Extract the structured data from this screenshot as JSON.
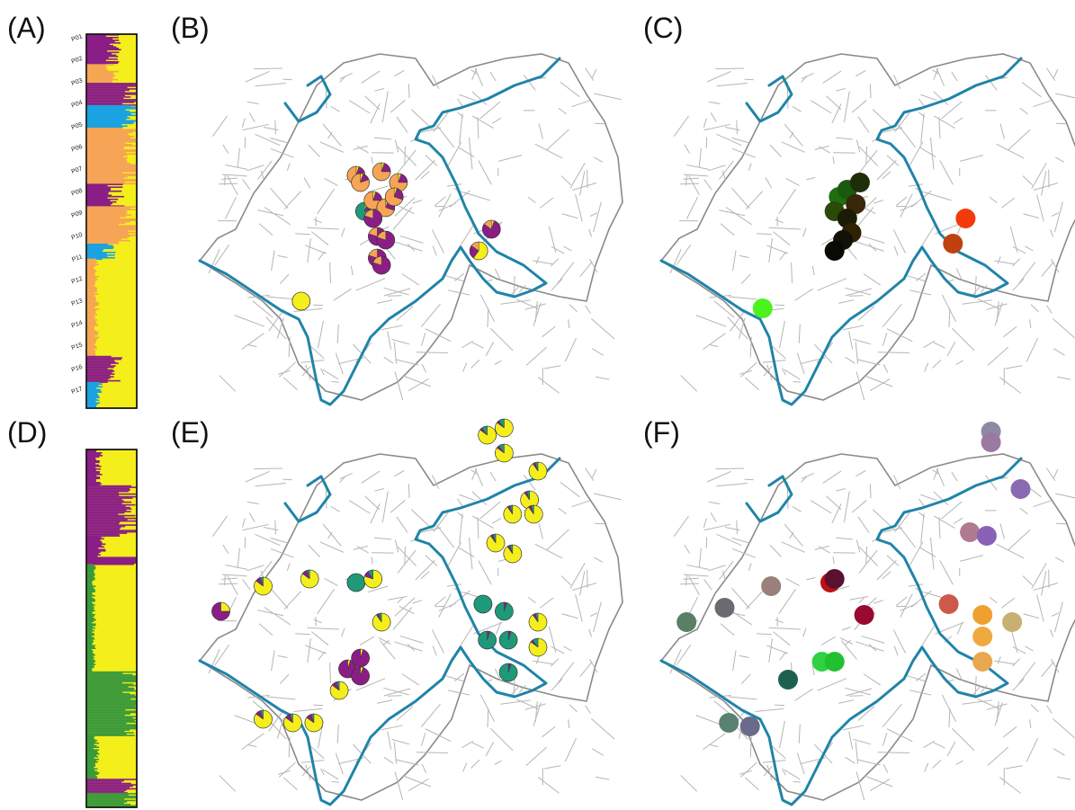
{
  "colors": {
    "river": "#1f84a8",
    "yellow": "#f4ef1a",
    "purple": "#8a1e86",
    "blue": "#1aa3e0",
    "orange": "#f6a455",
    "green": "#3a9a3a",
    "teal": "#1e9a7a"
  },
  "panels": {
    "A": {
      "label": "(A)",
      "kind": "structure-bar",
      "ticks": [
        "P01",
        "P02",
        "P03",
        "P04",
        "P05",
        "P06",
        "P07",
        "P08",
        "P09",
        "P10",
        "P11",
        "P12",
        "P13",
        "P14",
        "P15",
        "P16",
        "P17"
      ]
    },
    "B": {
      "label": "(B)",
      "kind": "pie-map"
    },
    "C": {
      "label": "(C)",
      "kind": "color-map"
    },
    "D": {
      "label": "(D)",
      "kind": "structure-bar"
    },
    "E": {
      "label": "(E)",
      "kind": "pie-map"
    },
    "F": {
      "label": "(F)",
      "kind": "color-map"
    }
  },
  "pies_B": [
    {
      "p": [
        0.24,
        0.8
      ],
      "f": [
        1,
        0,
        0,
        0,
        0
      ]
    },
    {
      "p": [
        0.37,
        0.45
      ],
      "f": [
        0.05,
        0.15,
        0,
        0,
        0.8
      ]
    },
    {
      "p": [
        0.38,
        0.47
      ],
      "f": [
        0.05,
        0.15,
        0,
        0,
        0.8
      ]
    },
    {
      "p": [
        0.39,
        0.55
      ],
      "f": [
        0.05,
        0.15,
        0,
        0.8,
        0
      ]
    },
    {
      "p": [
        0.43,
        0.44
      ],
      "f": [
        0.05,
        0.2,
        0,
        0,
        0.75
      ]
    },
    {
      "p": [
        0.41,
        0.52
      ],
      "f": [
        0.05,
        0.2,
        0,
        0,
        0.75
      ]
    },
    {
      "p": [
        0.47,
        0.47
      ],
      "f": [
        0.05,
        0.2,
        0,
        0,
        0.75
      ]
    },
    {
      "p": [
        0.44,
        0.54
      ],
      "f": [
        0.05,
        0.25,
        0,
        0,
        0.7
      ]
    },
    {
      "p": [
        0.46,
        0.51
      ],
      "f": [
        0.05,
        0.25,
        0,
        0,
        0.7
      ]
    },
    {
      "p": [
        0.41,
        0.57
      ],
      "f": [
        0,
        0.8,
        0,
        0,
        0.2
      ]
    },
    {
      "p": [
        0.42,
        0.62
      ],
      "f": [
        0,
        0.8,
        0,
        0,
        0.2
      ]
    },
    {
      "p": [
        0.44,
        0.63
      ],
      "f": [
        0,
        0.8,
        0,
        0,
        0.2
      ]
    },
    {
      "p": [
        0.42,
        0.68
      ],
      "f": [
        0,
        0.8,
        0,
        0,
        0.2
      ]
    },
    {
      "p": [
        0.43,
        0.7
      ],
      "f": [
        0,
        0.8,
        0,
        0,
        0.2
      ]
    },
    {
      "p": [
        0.69,
        0.6
      ],
      "f": [
        0.05,
        0.8,
        0,
        0,
        0.15
      ]
    },
    {
      "p": [
        0.66,
        0.66
      ],
      "f": [
        0.6,
        0.25,
        0,
        0,
        0.15
      ]
    }
  ],
  "dots_C": [
    {
      "p": [
        0.24,
        0.82
      ],
      "c": "#4cf21e"
    },
    {
      "p": [
        0.42,
        0.51
      ],
      "c": "#1f6e12"
    },
    {
      "p": [
        0.44,
        0.49
      ],
      "c": "#1a5a0e"
    },
    {
      "p": [
        0.47,
        0.47
      ],
      "c": "#1e2e08"
    },
    {
      "p": [
        0.41,
        0.55
      ],
      "c": "#2a4a0a"
    },
    {
      "p": [
        0.46,
        0.53
      ],
      "c": "#3a2608"
    },
    {
      "p": [
        0.44,
        0.57
      ],
      "c": "#1c1c06"
    },
    {
      "p": [
        0.45,
        0.61
      ],
      "c": "#2e2205"
    },
    {
      "p": [
        0.43,
        0.63
      ],
      "c": "#111108"
    },
    {
      "p": [
        0.41,
        0.66
      ],
      "c": "#0a0a05"
    },
    {
      "p": [
        0.72,
        0.57
      ],
      "c": "#f23a0a"
    },
    {
      "p": [
        0.69,
        0.64
      ],
      "c": "#c04010"
    }
  ],
  "pies_E": [
    {
      "p": [
        0.68,
        0.06
      ],
      "f": [
        0.85,
        0.05,
        0,
        0.1,
        0
      ]
    },
    {
      "p": [
        0.72,
        0.04
      ],
      "f": [
        0.85,
        0.05,
        0,
        0.1,
        0
      ]
    },
    {
      "p": [
        0.72,
        0.11
      ],
      "f": [
        0.85,
        0.05,
        0,
        0.1,
        0
      ]
    },
    {
      "p": [
        0.8,
        0.16
      ],
      "f": [
        0.9,
        0.05,
        0,
        0.05,
        0
      ]
    },
    {
      "p": [
        0.78,
        0.24
      ],
      "f": [
        0.9,
        0.05,
        0,
        0.05,
        0
      ]
    },
    {
      "p": [
        0.74,
        0.28
      ],
      "f": [
        0.9,
        0.05,
        0,
        0.05,
        0
      ]
    },
    {
      "p": [
        0.79,
        0.28
      ],
      "f": [
        0.9,
        0.05,
        0,
        0.05,
        0
      ]
    },
    {
      "p": [
        0.7,
        0.36
      ],
      "f": [
        0.9,
        0.05,
        0,
        0.05,
        0
      ]
    },
    {
      "p": [
        0.74,
        0.39
      ],
      "f": [
        0.9,
        0.05,
        0,
        0.05,
        0
      ]
    },
    {
      "p": [
        0.05,
        0.55
      ],
      "f": [
        0.25,
        0.75,
        0,
        0,
        0
      ]
    },
    {
      "p": [
        0.15,
        0.48
      ],
      "f": [
        0.85,
        0.1,
        0,
        0.05,
        0
      ]
    },
    {
      "p": [
        0.26,
        0.46
      ],
      "f": [
        0.85,
        0.1,
        0,
        0.05,
        0
      ]
    },
    {
      "p": [
        0.37,
        0.47
      ],
      "f": [
        0,
        0,
        0,
        1,
        0
      ]
    },
    {
      "p": [
        0.41,
        0.46
      ],
      "f": [
        0.8,
        0.1,
        0,
        0.1,
        0
      ]
    },
    {
      "p": [
        0.43,
        0.58
      ],
      "f": [
        0.9,
        0.05,
        0,
        0.05,
        0
      ]
    },
    {
      "p": [
        0.67,
        0.53
      ],
      "f": [
        0,
        0,
        0,
        1,
        0
      ]
    },
    {
      "p": [
        0.72,
        0.55
      ],
      "f": [
        0,
        0.05,
        0,
        0.95,
        0
      ]
    },
    {
      "p": [
        0.68,
        0.63
      ],
      "f": [
        0,
        0.05,
        0,
        0.95,
        0
      ]
    },
    {
      "p": [
        0.73,
        0.63
      ],
      "f": [
        0,
        0.05,
        0,
        0.95,
        0
      ]
    },
    {
      "p": [
        0.8,
        0.58
      ],
      "f": [
        0.9,
        0.05,
        0,
        0.05,
        0
      ]
    },
    {
      "p": [
        0.8,
        0.65
      ],
      "f": [
        0.85,
        0.05,
        0,
        0.1,
        0
      ]
    },
    {
      "p": [
        0.73,
        0.72
      ],
      "f": [
        0,
        0.05,
        0,
        0.95,
        0
      ]
    },
    {
      "p": [
        0.33,
        0.77
      ],
      "f": [
        0.85,
        0.1,
        0,
        0.05,
        0
      ]
    },
    {
      "p": [
        0.35,
        0.71
      ],
      "f": [
        0.05,
        0.95,
        0,
        0,
        0
      ]
    },
    {
      "p": [
        0.38,
        0.68
      ],
      "f": [
        0.05,
        0.95,
        0,
        0,
        0
      ]
    },
    {
      "p": [
        0.38,
        0.73
      ],
      "f": [
        0.05,
        0.95,
        0,
        0,
        0
      ]
    },
    {
      "p": [
        0.15,
        0.85
      ],
      "f": [
        0.85,
        0.1,
        0,
        0.05,
        0
      ]
    },
    {
      "p": [
        0.22,
        0.86
      ],
      "f": [
        0.85,
        0.1,
        0,
        0.05,
        0
      ]
    },
    {
      "p": [
        0.27,
        0.86
      ],
      "f": [
        0.85,
        0.1,
        0,
        0.05,
        0
      ]
    }
  ],
  "dots_F": [
    {
      "p": [
        0.78,
        0.05
      ],
      "c": "#8e8aa6"
    },
    {
      "p": [
        0.78,
        0.08
      ],
      "c": "#9a7aa0"
    },
    {
      "p": [
        0.85,
        0.21
      ],
      "c": "#8a6ab0"
    },
    {
      "p": [
        0.73,
        0.33
      ],
      "c": "#b07a90"
    },
    {
      "p": [
        0.77,
        0.34
      ],
      "c": "#8a60b8"
    },
    {
      "p": [
        0.06,
        0.58
      ],
      "c": "#5a7e66"
    },
    {
      "p": [
        0.15,
        0.54
      ],
      "c": "#6a6a72"
    },
    {
      "p": [
        0.26,
        0.48
      ],
      "c": "#9a807a"
    },
    {
      "p": [
        0.4,
        0.47
      ],
      "c": "#c01010"
    },
    {
      "p": [
        0.41,
        0.46
      ],
      "c": "#5a1030"
    },
    {
      "p": [
        0.48,
        0.56
      ],
      "c": "#9a0a30"
    },
    {
      "p": [
        0.68,
        0.53
      ],
      "c": "#cc5a4a"
    },
    {
      "p": [
        0.76,
        0.56
      ],
      "c": "#f0a030"
    },
    {
      "p": [
        0.76,
        0.62
      ],
      "c": "#f0a840"
    },
    {
      "p": [
        0.83,
        0.58
      ],
      "c": "#c8b070"
    },
    {
      "p": [
        0.76,
        0.69
      ],
      "c": "#e8a850"
    },
    {
      "p": [
        0.38,
        0.69
      ],
      "c": "#30d040"
    },
    {
      "p": [
        0.41,
        0.69
      ],
      "c": "#20c030"
    },
    {
      "p": [
        0.3,
        0.74
      ],
      "c": "#1e6050"
    },
    {
      "p": [
        0.16,
        0.86
      ],
      "c": "#5a8070"
    },
    {
      "p": [
        0.21,
        0.87
      ],
      "c": "#6a6a8a"
    }
  ]
}
